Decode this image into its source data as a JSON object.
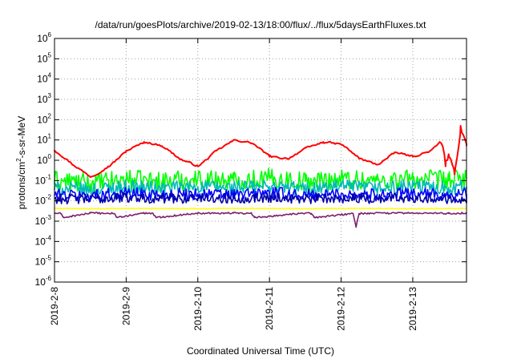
{
  "chart_data": {
    "type": "line",
    "title": "/data/run/goesPlots/archive/2019-02-13/18:00/flux/../flux/5daysEarthFluxes.txt",
    "xlabel": "Coordinated Universal Time (UTC)",
    "ylabel": {
      "prefix": "protons/cm",
      "exp": "2",
      "suffix": "-s-sr-MeV"
    },
    "y_scale": "log",
    "ylim": [
      1e-06,
      1000000.0
    ],
    "xlim": [
      "2019-02-08 00:00",
      "2019-02-13 18:00"
    ],
    "y_ticks": [
      {
        "value": 1e-06,
        "base": "10",
        "exp": "-6"
      },
      {
        "value": 1e-05,
        "base": "10",
        "exp": "-5"
      },
      {
        "value": 0.0001,
        "base": "10",
        "exp": "-4"
      },
      {
        "value": 0.001,
        "base": "10",
        "exp": "-3"
      },
      {
        "value": 0.01,
        "base": "10",
        "exp": "-2"
      },
      {
        "value": 0.1,
        "base": "10",
        "exp": "-1"
      },
      {
        "value": 1,
        "base": "10",
        "exp": "0"
      },
      {
        "value": 10,
        "base": "10",
        "exp": "1"
      },
      {
        "value": 100,
        "base": "10",
        "exp": "2"
      },
      {
        "value": 1000,
        "base": "10",
        "exp": "3"
      },
      {
        "value": 10000,
        "base": "10",
        "exp": "4"
      },
      {
        "value": 100000,
        "base": "10",
        "exp": "5"
      },
      {
        "value": 1000000,
        "base": "10",
        "exp": "6"
      }
    ],
    "x_ticks": [
      "2019-2-8",
      "2019-2-9",
      "2019-2-10",
      "2019-2-11",
      "2019-2-12",
      "2019-2-13"
    ],
    "grid": true,
    "legend": "none",
    "series": [
      {
        "color": "#ff0000",
        "x": [
          "2019-02-08 00:00",
          "2019-02-08 06:00",
          "2019-02-08 12:00",
          "2019-02-08 18:00",
          "2019-02-09 00:00",
          "2019-02-09 06:00",
          "2019-02-09 12:00",
          "2019-02-09 18:00",
          "2019-02-10 00:00",
          "2019-02-10 06:00",
          "2019-02-10 12:00",
          "2019-02-10 18:00",
          "2019-02-11 00:00",
          "2019-02-11 06:00",
          "2019-02-11 12:00",
          "2019-02-11 18:00",
          "2019-02-12 00:00",
          "2019-02-12 06:00",
          "2019-02-12 12:00",
          "2019-02-12 18:00",
          "2019-02-13 00:00",
          "2019-02-13 06:00",
          "2019-02-13 09:00",
          "2019-02-13 10:00",
          "2019-02-13 11:00",
          "2019-02-13 12:00",
          "2019-02-13 14:00",
          "2019-02-13 16:00",
          "2019-02-13 18:00"
        ],
        "y": [
          3,
          0.6,
          0.15,
          0.5,
          3,
          8,
          5,
          1.1,
          0.5,
          3,
          10,
          7,
          1.5,
          1.2,
          4,
          8,
          6,
          1.2,
          0.6,
          2.5,
          1.5,
          3,
          8,
          5,
          0.5,
          2,
          0.2,
          50,
          5
        ]
      },
      {
        "color": "#00ff00",
        "x": [
          "2019-02-08 00:00",
          "2019-02-08 12:00",
          "2019-02-09 00:00",
          "2019-02-09 12:00",
          "2019-02-10 00:00",
          "2019-02-10 12:00",
          "2019-02-11 00:00",
          "2019-02-11 12:00",
          "2019-02-12 00:00",
          "2019-02-12 12:00",
          "2019-02-13 00:00",
          "2019-02-13 12:00",
          "2019-02-13 18:00"
        ],
        "y": [
          0.1,
          0.07,
          0.11,
          0.09,
          0.12,
          0.1,
          0.13,
          0.09,
          0.12,
          0.1,
          0.12,
          0.1,
          0.13
        ]
      },
      {
        "color": "#00b8b8",
        "x": [
          "2019-02-08 00:00",
          "2019-02-08 12:00",
          "2019-02-09 00:00",
          "2019-02-09 12:00",
          "2019-02-10 00:00",
          "2019-02-10 12:00",
          "2019-02-11 00:00",
          "2019-02-11 12:00",
          "2019-02-12 00:00",
          "2019-02-12 12:00",
          "2019-02-13 00:00",
          "2019-02-13 12:00",
          "2019-02-13 18:00"
        ],
        "y": [
          0.04,
          0.035,
          0.05,
          0.04,
          0.05,
          0.045,
          0.05,
          0.04,
          0.05,
          0.04,
          0.05,
          0.045,
          0.05
        ]
      },
      {
        "color": "#0000ff",
        "x": [
          "2019-02-08 00:00",
          "2019-02-08 12:00",
          "2019-02-09 00:00",
          "2019-02-09 12:00",
          "2019-02-10 00:00",
          "2019-02-10 12:00",
          "2019-02-11 00:00",
          "2019-02-11 12:00",
          "2019-02-12 00:00",
          "2019-02-12 12:00",
          "2019-02-13 00:00",
          "2019-02-13 12:00",
          "2019-02-13 18:00"
        ],
        "y": [
          0.02,
          0.018,
          0.025,
          0.02,
          0.022,
          0.02,
          0.025,
          0.019,
          0.022,
          0.02,
          0.023,
          0.02,
          0.022
        ]
      },
      {
        "color": "#0000aa",
        "x": [
          "2019-02-08 00:00",
          "2019-02-08 12:00",
          "2019-02-09 00:00",
          "2019-02-09 12:00",
          "2019-02-10 00:00",
          "2019-02-10 12:00",
          "2019-02-11 00:00",
          "2019-02-11 12:00",
          "2019-02-12 00:00",
          "2019-02-12 12:00",
          "2019-02-13 00:00",
          "2019-02-13 12:00",
          "2019-02-13 18:00"
        ],
        "y": [
          0.013,
          0.012,
          0.015,
          0.013,
          0.014,
          0.013,
          0.015,
          0.012,
          0.014,
          0.013,
          0.015,
          0.013,
          0.014
        ]
      },
      {
        "color": "#ffff00",
        "x": [
          "2019-02-08 00:00",
          "2019-02-08 12:00",
          "2019-02-09 00:00",
          "2019-02-09 12:00",
          "2019-02-10 00:00",
          "2019-02-10 12:00",
          "2019-02-11 00:00",
          "2019-02-11 12:00",
          "2019-02-12 00:00",
          "2019-02-12 12:00",
          "2019-02-13 00:00",
          "2019-02-13 12:00",
          "2019-02-13 18:00"
        ],
        "y": [
          0.0042,
          0.0041,
          0.0042,
          0.0042,
          0.0041,
          0.0042,
          0.0042,
          0.0041,
          0.0042,
          0.0042,
          0.0041,
          0.0042,
          0.0042
        ]
      },
      {
        "color": "#7a2070",
        "x": [
          "2019-02-08 00:00",
          "2019-02-08 02:00",
          "2019-02-08 03:00",
          "2019-02-08 12:00",
          "2019-02-08 20:00",
          "2019-02-08 21:00",
          "2019-02-09 06:00",
          "2019-02-09 09:00",
          "2019-02-09 10:00",
          "2019-02-10 00:00",
          "2019-02-10 12:00",
          "2019-02-10 18:00",
          "2019-02-10 19:00",
          "2019-02-11 12:00",
          "2019-02-11 14:00",
          "2019-02-11 15:00",
          "2019-02-12 04:00",
          "2019-02-12 05:00",
          "2019-02-12 06:00",
          "2019-02-12 18:00",
          "2019-02-13 00:00",
          "2019-02-13 12:00",
          "2019-02-13 18:00"
        ],
        "y": [
          0.0025,
          0.0024,
          0.0015,
          0.0025,
          0.0024,
          0.0015,
          0.0025,
          0.0024,
          0.0015,
          0.0025,
          0.0025,
          0.0024,
          0.0015,
          0.0025,
          0.0024,
          0.0015,
          0.0024,
          0.0005,
          0.0024,
          0.0025,
          0.0025,
          0.0024,
          0.0025
        ]
      }
    ]
  }
}
